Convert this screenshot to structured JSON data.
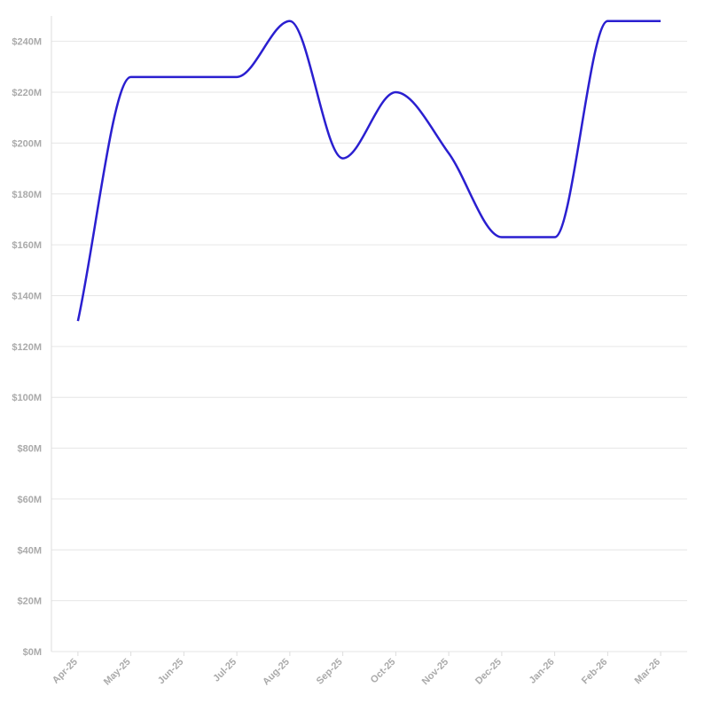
{
  "chart_data": {
    "type": "line",
    "categories": [
      "Apr-25",
      "May-25",
      "Jun-25",
      "Jul-25",
      "Aug-25",
      "Sep-25",
      "Oct-25",
      "Nov-25",
      "Dec-25",
      "Jan-26",
      "Feb-26",
      "Mar-26"
    ],
    "values": [
      130,
      226,
      226,
      226,
      248,
      194,
      220,
      196,
      163,
      163,
      248,
      248
    ],
    "color": "#2a1fd0",
    "ylim": [
      0,
      250
    ],
    "yticks": [
      {
        "value": 0,
        "label": "$0M"
      },
      {
        "value": 20,
        "label": "$20M"
      },
      {
        "value": 40,
        "label": "$40M"
      },
      {
        "value": 60,
        "label": "$60M"
      },
      {
        "value": 80,
        "label": "$80M"
      },
      {
        "value": 100,
        "label": "$100M"
      },
      {
        "value": 120,
        "label": "$120M"
      },
      {
        "value": 140,
        "label": "$140M"
      },
      {
        "value": 160,
        "label": "$160M"
      },
      {
        "value": 180,
        "label": "$180M"
      },
      {
        "value": 200,
        "label": "$200M"
      },
      {
        "value": 220,
        "label": "$220M"
      },
      {
        "value": 240,
        "label": "$240M"
      }
    ],
    "grid": true
  }
}
